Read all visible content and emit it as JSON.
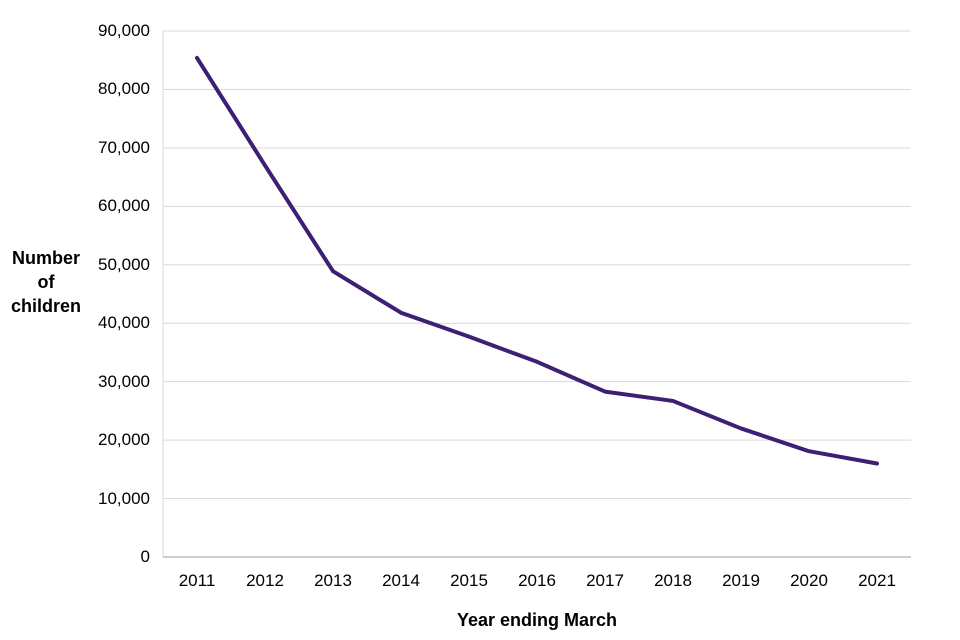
{
  "colors": {
    "line": "#3d1f73",
    "grid": "#d9d9d9",
    "axis": "#bfbfbf",
    "text": "#000000",
    "background": "#ffffff"
  },
  "chart_data": {
    "type": "line",
    "title": "",
    "xlabel": "Year ending March",
    "ylabel": "Number of children",
    "ylabel_lines": [
      "Number",
      "of",
      "children"
    ],
    "x": [
      "2011",
      "2012",
      "2013",
      "2014",
      "2015",
      "2016",
      "2017",
      "2018",
      "2019",
      "2020",
      "2021"
    ],
    "series": [
      {
        "name": "Number of children",
        "color": "#3d1f73",
        "values": [
          85400,
          67000,
          48900,
          41800,
          37700,
          33400,
          28300,
          26700,
          22000,
          18100,
          16000
        ]
      }
    ],
    "ylim": [
      0,
      90000
    ],
    "ytick_step": 10000,
    "ytick_labels": [
      "0",
      "10,000",
      "20,000",
      "30,000",
      "40,000",
      "50,000",
      "60,000",
      "70,000",
      "80,000",
      "90,000"
    ],
    "grid": "horizontal gridlines only",
    "legend": "none"
  }
}
